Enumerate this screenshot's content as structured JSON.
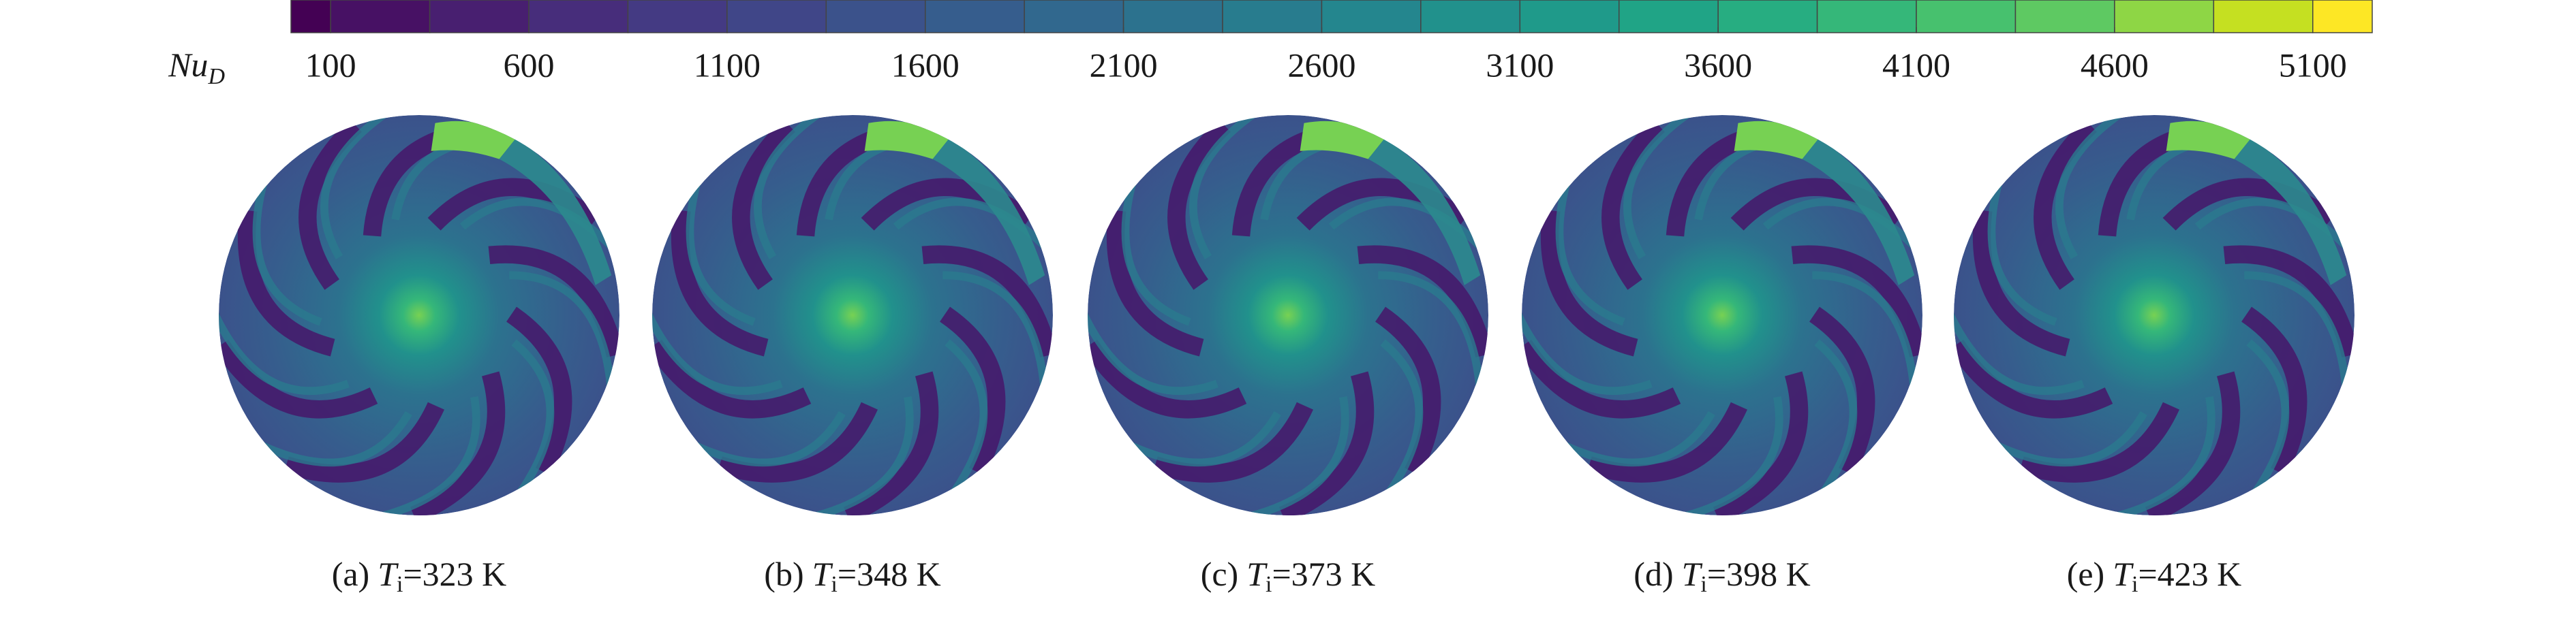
{
  "colorbar": {
    "label": "Nu",
    "label_subscript": "D",
    "range": [
      0,
      5250
    ],
    "ticks": [
      100,
      600,
      1100,
      1600,
      2100,
      2600,
      3100,
      3600,
      4100,
      4600,
      5100
    ],
    "levels": [
      100,
      350,
      600,
      850,
      1100,
      1350,
      1600,
      1850,
      2100,
      2350,
      2600,
      2850,
      3100,
      3350,
      3600,
      3850,
      4100,
      4350,
      4600,
      4850,
      5100
    ],
    "colors": [
      "#440154",
      "#471164",
      "#481f70",
      "#472d7b",
      "#443a83",
      "#404688",
      "#3b528b",
      "#365d8d",
      "#31688e",
      "#2c728e",
      "#287c8e",
      "#24868e",
      "#21918c",
      "#1f9a8a",
      "#20a486",
      "#27ad81",
      "#35b779",
      "#47c16e",
      "#5ec962",
      "#8ed645",
      "#c5e021",
      "#fde725"
    ]
  },
  "panels": [
    {
      "label": "(a)",
      "symbol": "T",
      "subscript": "i",
      "value_text": "=323 K"
    },
    {
      "label": "(b)",
      "symbol": "T",
      "subscript": "i",
      "value_text": "=348 K"
    },
    {
      "label": "(c)",
      "symbol": "T",
      "subscript": "i",
      "value_text": "=373 K"
    },
    {
      "label": "(d)",
      "symbol": "T",
      "subscript": "i",
      "value_text": "=398 K"
    },
    {
      "label": "(e)",
      "symbol": "T",
      "subscript": "i",
      "value_text": "=423 K"
    }
  ]
}
